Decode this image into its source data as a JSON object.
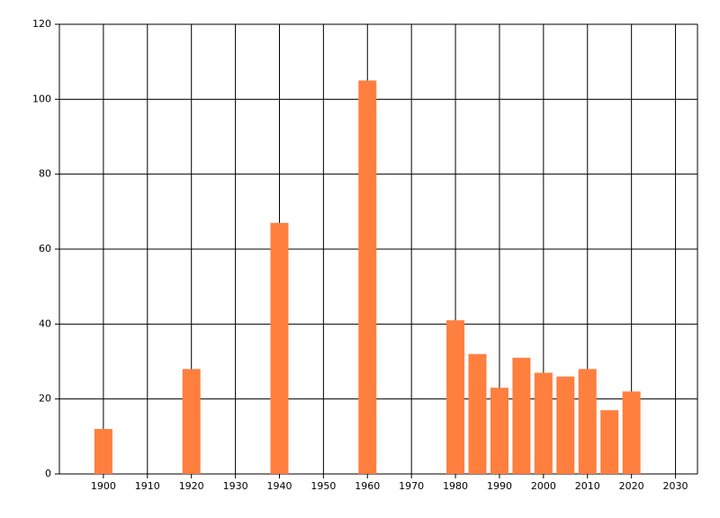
{
  "chart_data": {
    "type": "bar",
    "x": [
      1900,
      1920,
      1940,
      1960,
      1980,
      1985,
      1990,
      1995,
      2000,
      2005,
      2010,
      2015,
      2020
    ],
    "values": [
      12,
      28,
      67,
      105,
      41,
      32,
      23,
      31,
      27,
      26,
      28,
      17,
      22
    ],
    "color": "#ff7f3f",
    "xlim": [
      1890,
      2035
    ],
    "xticks": [
      1900,
      1910,
      1920,
      1930,
      1940,
      1950,
      1960,
      1970,
      1980,
      1990,
      2000,
      2010,
      2020,
      2030
    ],
    "ylim": [
      0,
      120
    ],
    "yticks": [
      0,
      20,
      40,
      60,
      80,
      100,
      120
    ],
    "grid": true
  }
}
